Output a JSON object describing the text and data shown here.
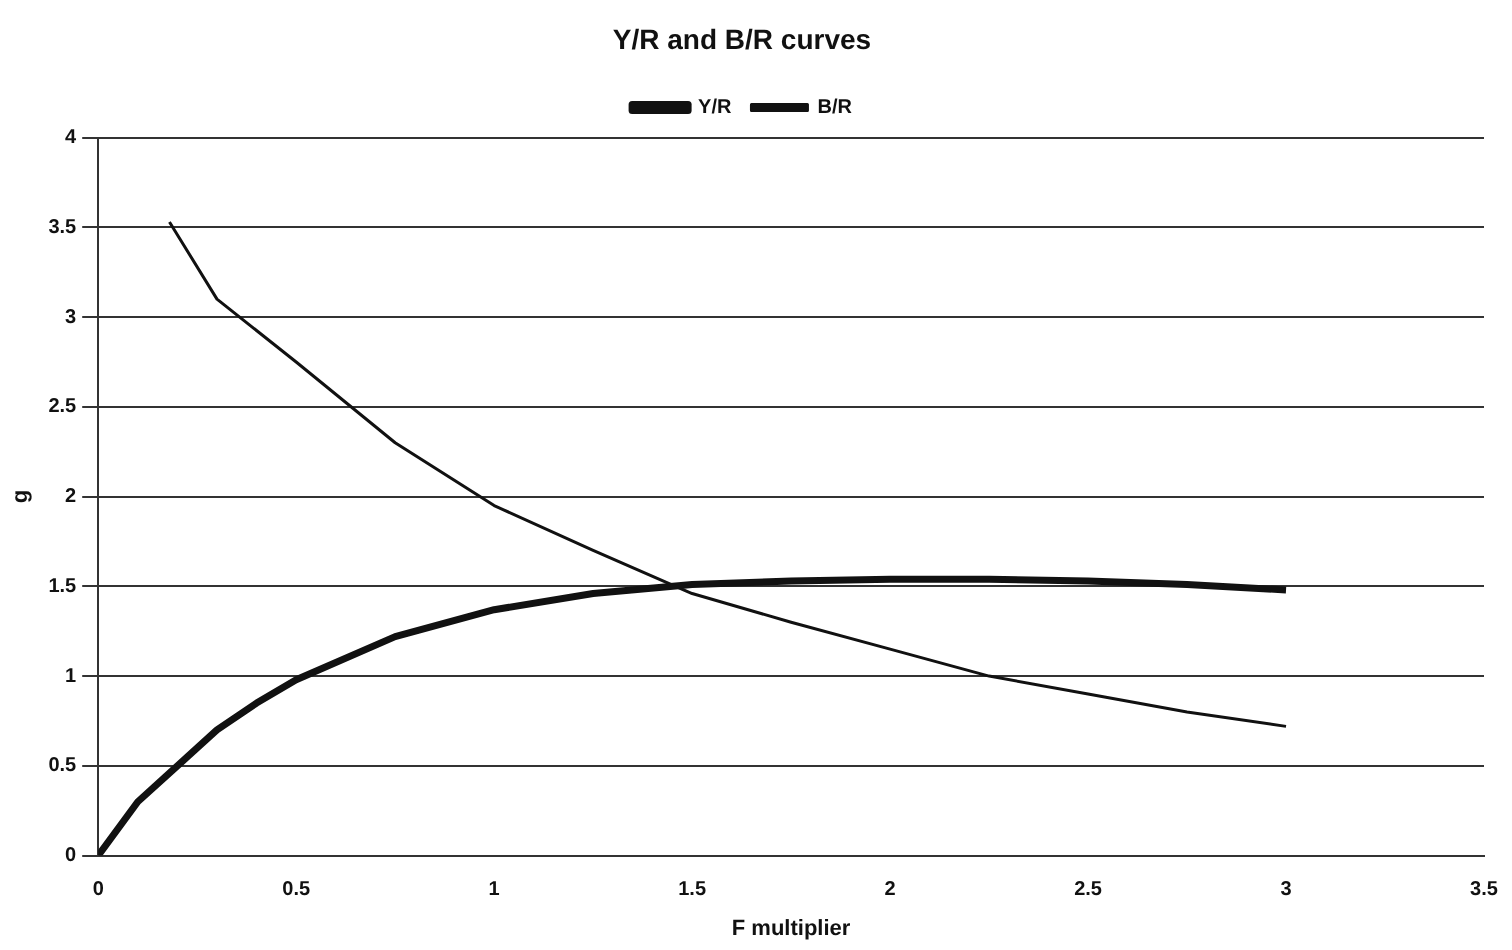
{
  "chart_data": {
    "type": "line",
    "title": "Y/R and B/R curves",
    "xlabel": "F multiplier",
    "ylabel": "g",
    "xlim": [
      0,
      3.5
    ],
    "xticks": [
      0,
      0.5,
      1,
      1.5,
      2,
      2.5,
      3,
      3.5
    ],
    "ylim": [
      0,
      4
    ],
    "yticks": [
      0,
      0.5,
      1,
      1.5,
      2,
      2.5,
      3,
      3.5,
      4
    ],
    "grid": "y",
    "legend": "top",
    "marker": "none",
    "line_style": "solid",
    "series": [
      {
        "name": "Y/R",
        "color": "#111111",
        "x": [
          0,
          0.1,
          0.2,
          0.3,
          0.4,
          0.5,
          0.75,
          1,
          1.25,
          1.5,
          1.75,
          2,
          2.25,
          2.5,
          2.75,
          3
        ],
        "values": [
          0,
          0.3,
          0.5,
          0.7,
          0.85,
          0.98,
          1.22,
          1.37,
          1.46,
          1.51,
          1.53,
          1.54,
          1.54,
          1.53,
          1.51,
          1.48
        ]
      },
      {
        "name": "B/R",
        "color": "#111111",
        "x": [
          0.18,
          0.3,
          0.5,
          0.75,
          1,
          1.25,
          1.5,
          1.75,
          2,
          2.25,
          2.5,
          2.75,
          3
        ],
        "values": [
          3.53,
          3.1,
          2.75,
          2.3,
          1.95,
          1.7,
          1.46,
          1.3,
          1.15,
          1.0,
          0.9,
          0.8,
          0.72
        ]
      }
    ]
  }
}
